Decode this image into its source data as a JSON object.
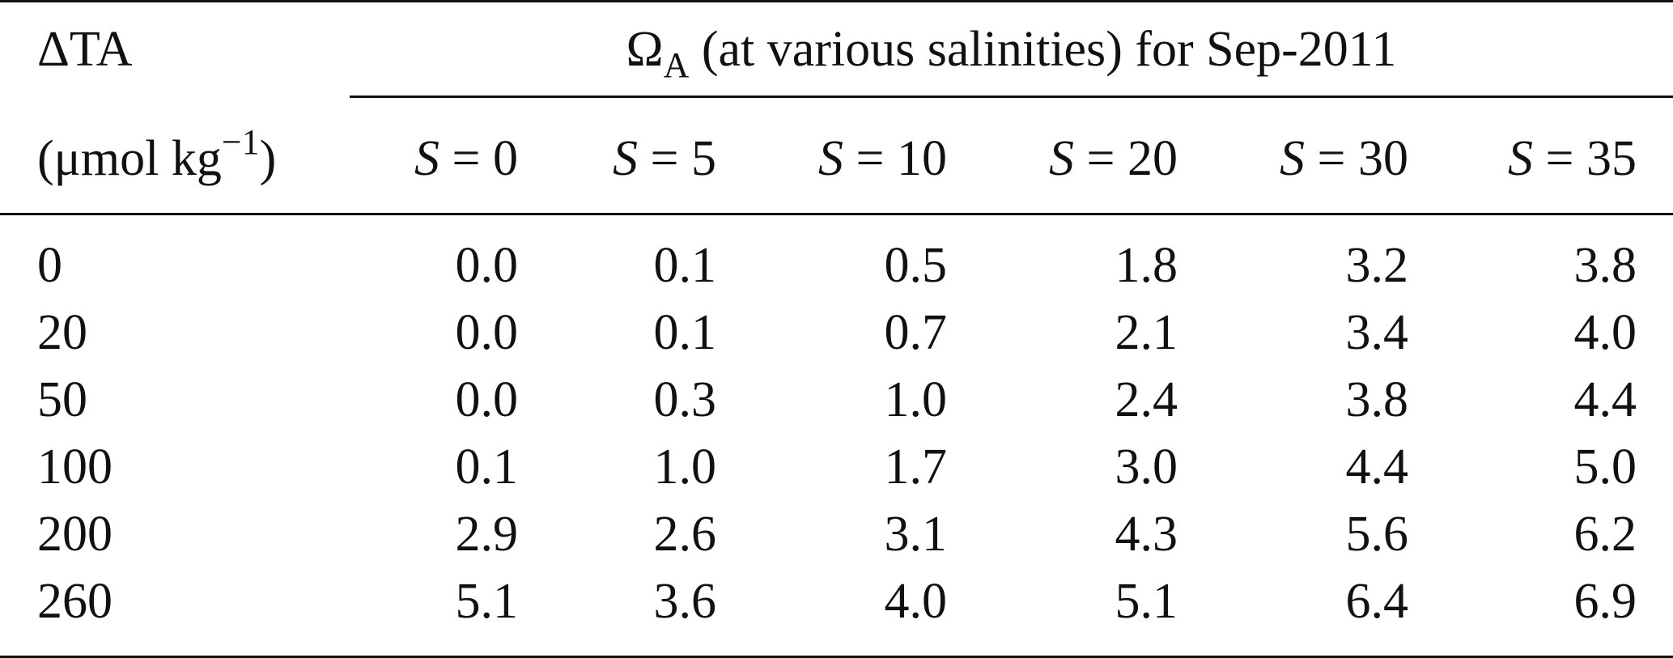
{
  "table": {
    "row_header_line1": "ΔTA",
    "row_header_line2_prefix": "(μmol kg",
    "row_header_line2_sup": "−1",
    "row_header_line2_suffix": ")",
    "group_header_symbol": "Ω",
    "group_header_sub": "A",
    "group_header_text": " (at various salinities) for Sep-2011",
    "columns": [
      {
        "var": "S",
        "eq": " = 0"
      },
      {
        "var": "S",
        "eq": " = 5"
      },
      {
        "var": "S",
        "eq": " = 10"
      },
      {
        "var": "S",
        "eq": " = 20"
      },
      {
        "var": "S",
        "eq": " = 30"
      },
      {
        "var": "S",
        "eq": " = 35"
      }
    ],
    "rows": [
      {
        "label": "0",
        "values": [
          "0.0",
          "0.1",
          "0.5",
          "1.8",
          "3.2",
          "3.8"
        ]
      },
      {
        "label": "20",
        "values": [
          "0.0",
          "0.1",
          "0.7",
          "2.1",
          "3.4",
          "4.0"
        ]
      },
      {
        "label": "50",
        "values": [
          "0.0",
          "0.3",
          "1.0",
          "2.4",
          "3.8",
          "4.4"
        ]
      },
      {
        "label": "100",
        "values": [
          "0.1",
          "1.0",
          "1.7",
          "3.0",
          "4.4",
          "5.0"
        ]
      },
      {
        "label": "200",
        "values": [
          "2.9",
          "2.6",
          "3.1",
          "4.3",
          "5.6",
          "6.2"
        ]
      },
      {
        "label": "260",
        "values": [
          "5.1",
          "3.6",
          "4.0",
          "5.1",
          "6.4",
          "6.9"
        ]
      }
    ]
  }
}
